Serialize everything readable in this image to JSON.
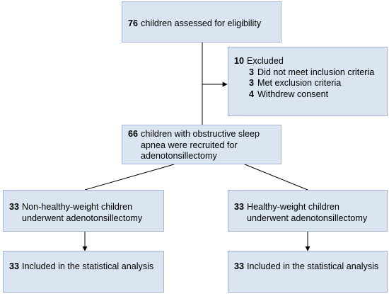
{
  "assessed": {
    "count": "76",
    "text": "children assessed for eligibility"
  },
  "excluded": {
    "count": "10",
    "text": "Excluded",
    "reasons": [
      {
        "count": "3",
        "text": "Did not meet inclusion criteria"
      },
      {
        "count": "3",
        "text": "Met exclusion criteria"
      },
      {
        "count": "4",
        "text": "Withdrew consent"
      }
    ]
  },
  "recruited": {
    "count": "66",
    "text": "children with obstructive sleep apnea were recruited for adenotonsillectomy"
  },
  "groups": [
    {
      "enrolled": {
        "count": "33",
        "text": "Non-healthy-weight children underwent adenotonsillectomy"
      },
      "analyzed": {
        "count": "33",
        "text": "Included in the statistical analysis"
      }
    },
    {
      "enrolled": {
        "count": "33",
        "text": "Healthy-weight children underwent adenotonsillectomy"
      },
      "analyzed": {
        "count": "33",
        "text": "Included in the statistical analysis"
      }
    }
  ]
}
